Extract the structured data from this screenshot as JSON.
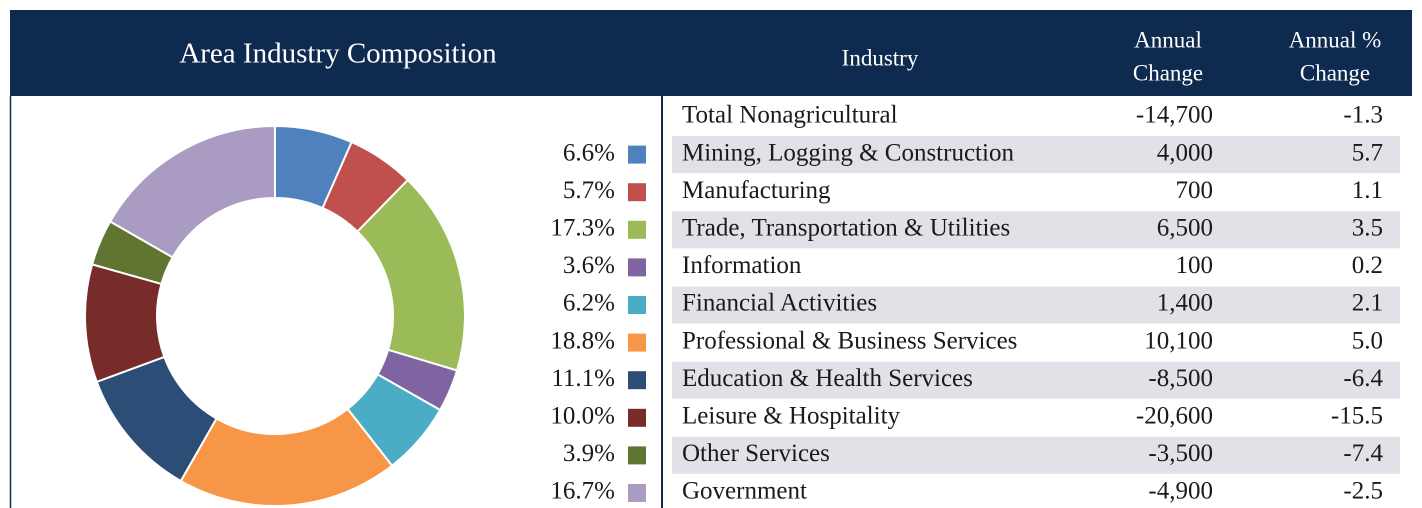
{
  "chart_data": {
    "type": "donut",
    "title": "Area Industry Composition",
    "values": [
      6.6,
      5.7,
      17.3,
      3.6,
      6.2,
      18.8,
      11.1,
      10.0,
      3.9,
      16.7
    ],
    "value_labels": [
      "6.6%",
      "5.7%",
      "17.3%",
      "3.6%",
      "6.2%",
      "18.8%",
      "11.1%",
      "10.0%",
      "3.9%",
      "16.7%"
    ],
    "colors": [
      "#4f81bd",
      "#c0504d",
      "#9bbb59",
      "#8064a2",
      "#4bacc6",
      "#f79646",
      "#2c4d75",
      "#772c2a",
      "#5f7530",
      "#a99bc1"
    ]
  },
  "table": {
    "header": [
      [
        "Industry"
      ],
      [
        "Annual",
        "Change"
      ],
      [
        "Annual %",
        "Change"
      ]
    ],
    "rows": [
      [
        "Total Nonagricultural",
        "-14,700",
        "-1.3"
      ],
      [
        "Mining, Logging & Construction",
        "4,000",
        "5.7"
      ],
      [
        "Manufacturing",
        "700",
        "1.1"
      ],
      [
        "Trade, Transportation & Utilities",
        "6,500",
        "3.5"
      ],
      [
        "Information",
        "100",
        "0.2"
      ],
      [
        "Financial Activities",
        "1,400",
        "2.1"
      ],
      [
        "Professional & Business Services",
        "10,100",
        "5.0"
      ],
      [
        "Education & Health Services",
        "-8,500",
        "-6.4"
      ],
      [
        "Leisure & Hospitality",
        "-20,600",
        "-15.5"
      ],
      [
        "Other Services",
        "-3,500",
        "-7.4"
      ],
      [
        "Government",
        "-4,900",
        "-2.5"
      ]
    ]
  }
}
